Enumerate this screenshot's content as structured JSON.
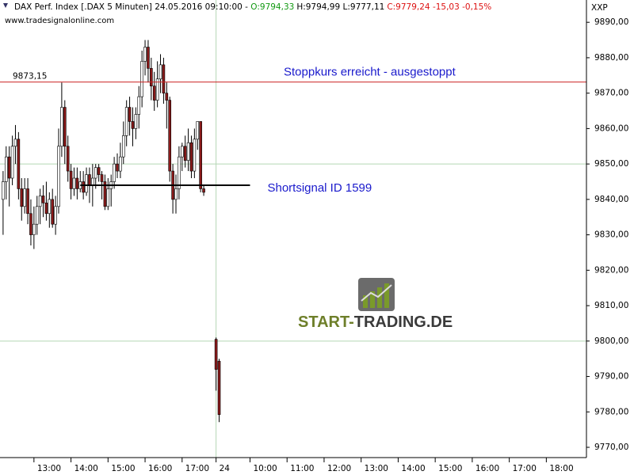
{
  "chart_data": {
    "type": "candlestick",
    "title": "DAX Perf. Index [.DAX  5 Minuten] 24.05.2016 09:10:00 -",
    "open_label": "O:9794,33",
    "high_low_label": "H:9794,99 L:9777,11",
    "close_label": "C:9779,24 -15,03 -0,15%",
    "source": "www.tradesignalonline.com",
    "symbol": "XXP",
    "watermark": [
      "START-",
      "TRADING.DE"
    ],
    "ylim": [
      9767.1,
      9896.3
    ],
    "xlim": [
      0,
      190
    ],
    "yticks": [
      {
        "value": 9770,
        "label": "9770,00"
      },
      {
        "value": 9780,
        "label": "9780,00"
      },
      {
        "value": 9790,
        "label": "9790,00"
      },
      {
        "value": 9800,
        "label": "9800,00"
      },
      {
        "value": 9810,
        "label": "9810,00"
      },
      {
        "value": 9820,
        "label": "9820,00"
      },
      {
        "value": 9830,
        "label": "9830,00"
      },
      {
        "value": 9840,
        "label": "9840,00"
      },
      {
        "value": 9850,
        "label": "9850,00"
      },
      {
        "value": 9860,
        "label": "9860,00"
      },
      {
        "value": 9870,
        "label": "9870,00"
      },
      {
        "value": 9880,
        "label": "9880,00"
      },
      {
        "value": 9890,
        "label": "9890,00"
      }
    ],
    "xticks": [
      {
        "value": 11,
        "label": "13:00"
      },
      {
        "value": 23,
        "label": "14:00"
      },
      {
        "value": 35,
        "label": "15:00"
      },
      {
        "value": 47,
        "label": "16:00"
      },
      {
        "value": 59,
        "label": "17:00"
      },
      {
        "value": 70,
        "label": "24"
      },
      {
        "value": 81,
        "label": "10:00"
      },
      {
        "value": 93,
        "label": "11:00"
      },
      {
        "value": 105,
        "label": "12:00"
      },
      {
        "value": 117,
        "label": "13:00"
      },
      {
        "value": 129,
        "label": "14:00"
      },
      {
        "value": 141,
        "label": "15:00"
      },
      {
        "value": 153,
        "label": "16:00"
      },
      {
        "value": 165,
        "label": "17:00"
      },
      {
        "value": 177,
        "label": "18:00"
      }
    ],
    "grid_y": [
      9800,
      9850
    ],
    "grid_x": [
      70
    ],
    "grid_color": "#b5d6b5",
    "up_color": "#ffffff",
    "down_color": "#8b1a1a",
    "candles": {
      "x": [
        1,
        2,
        3,
        4,
        5,
        6,
        7,
        8,
        9,
        10,
        11,
        12,
        13,
        14,
        15,
        16,
        17,
        18,
        19,
        20,
        21,
        22,
        23,
        24,
        25,
        26,
        27,
        28,
        29,
        30,
        31,
        32,
        33,
        34,
        35,
        36,
        37,
        38,
        39,
        40,
        41,
        42,
        43,
        44,
        45,
        46,
        47,
        48,
        49,
        50,
        51,
        52,
        53,
        54,
        55,
        56,
        57,
        58,
        59,
        60,
        61,
        62,
        63,
        64,
        65,
        66,
        70,
        71
      ],
      "open": [
        9840,
        9845,
        9852,
        9846,
        9855,
        9857,
        9843,
        9838,
        9843,
        9836,
        9830,
        9833,
        9838,
        9841,
        9839,
        9836,
        9840,
        9833,
        9838,
        9855,
        9866,
        9855,
        9848,
        9843,
        9846,
        9843,
        9845,
        9842,
        9847,
        9844,
        9846,
        9849,
        9847,
        9845,
        9838,
        9843,
        9845,
        9850,
        9848,
        9852,
        9858,
        9866,
        9862,
        9860,
        9864,
        9869,
        9879,
        9883,
        9877,
        9872,
        9868,
        9874,
        9878,
        9870,
        9868,
        9848,
        9840,
        9843,
        9852,
        9855,
        9851,
        9856,
        9848,
        9857,
        9862,
        9843,
        9800.5,
        9794.33
      ],
      "high": [
        9848,
        9855,
        9855,
        9858,
        9861,
        9859,
        9846,
        9846,
        9846,
        9840,
        9838,
        9841,
        9843,
        9844,
        9845,
        9842,
        9843,
        9841,
        9860,
        9873,
        9868,
        9858,
        9850,
        9849,
        9849,
        9848,
        9848,
        9849,
        9849,
        9850,
        9850,
        9850,
        9848,
        9847,
        9846,
        9847,
        9852,
        9853,
        9856,
        9862,
        9868,
        9869,
        9866,
        9866,
        9872,
        9882,
        9885,
        9885,
        9880,
        9876,
        9879,
        9881,
        9880,
        9873,
        9869,
        9850,
        9847,
        9855,
        9856,
        9858,
        9860,
        9858,
        9860,
        9862,
        9862,
        9844,
        9801,
        9794.99
      ],
      "low": [
        9830,
        9840,
        9838,
        9844,
        9850,
        9840,
        9834,
        9836,
        9833,
        9827,
        9826,
        9830,
        9833,
        9835,
        9834,
        9832,
        9832,
        9830,
        9836,
        9852,
        9850,
        9845,
        9840,
        9841,
        9840,
        9842,
        9840,
        9841,
        9839,
        9838,
        9843,
        9845,
        9840,
        9837,
        9837,
        9838,
        9843,
        9846,
        9846,
        9850,
        9855,
        9858,
        9855,
        9857,
        9860,
        9866,
        9875,
        9873,
        9868,
        9865,
        9866,
        9870,
        9867,
        9860,
        9845,
        9836,
        9836,
        9840,
        9848,
        9849,
        9848,
        9846,
        9846,
        9854,
        9842,
        9841,
        9786,
        9777.11
      ],
      "close": [
        9845,
        9852,
        9846,
        9855,
        9857,
        9843,
        9838,
        9843,
        9836,
        9830,
        9833,
        9838,
        9841,
        9839,
        9836,
        9840,
        9833,
        9838,
        9855,
        9866,
        9855,
        9848,
        9843,
        9846,
        9843,
        9845,
        9842,
        9847,
        9844,
        9846,
        9849,
        9847,
        9845,
        9838,
        9843,
        9845,
        9850,
        9848,
        9852,
        9858,
        9866,
        9862,
        9860,
        9864,
        9869,
        9879,
        9883,
        9877,
        9872,
        9868,
        9874,
        9878,
        9870,
        9868,
        9848,
        9840,
        9843,
        9852,
        9855,
        9851,
        9856,
        9848,
        9857,
        9862,
        9843,
        9842,
        9792,
        9779.24
      ]
    },
    "hlines": [
      {
        "value": 9873.15,
        "label": "9873,15",
        "color": "#cc2222",
        "annotation": "Stoppkurs erreicht - ausgestoppt"
      },
      {
        "value": 9844,
        "color": "#000000",
        "xrange": [
          26,
          81
        ],
        "annotation": "Shortsignal ID 1599"
      }
    ]
  }
}
